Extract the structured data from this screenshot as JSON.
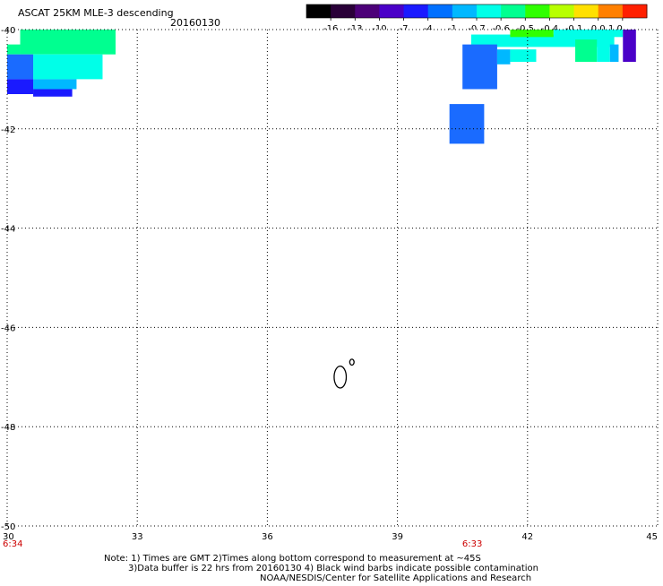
{
  "title": "ASCAT 25KM MLE-3 descending",
  "date": "20160130",
  "colorbar": {
    "labels": [
      "-16",
      "-13",
      "-10",
      "-7",
      "-4",
      "-1",
      "-0.7",
      "-0.6",
      "-0.5",
      "-0.4",
      "-0.1",
      "0.0",
      "1.0"
    ],
    "colors": [
      "#000000",
      "#2a0038",
      "#4c0078",
      "#4a00c8",
      "#1a1aff",
      "#0070ff",
      "#00b8ff",
      "#00ffe8",
      "#00ff90",
      "#30ff00",
      "#b8ff00",
      "#ffe000",
      "#ff8000",
      "#ff2000"
    ]
  },
  "map": {
    "lon_range": [
      30,
      45
    ],
    "lat_range": [
      -50,
      -40
    ],
    "lon_ticks": [
      "30",
      "33",
      "36",
      "39",
      "42",
      "45"
    ],
    "lat_ticks": [
      "-40",
      "-42",
      "-44",
      "-46",
      "-48",
      "-50"
    ],
    "grid": "dotted",
    "times": [
      {
        "lon": 30,
        "label": "6:34"
      },
      {
        "lon": 40.7,
        "label": "6:33"
      }
    ],
    "cells": [
      {
        "lon": 30.3,
        "lat": -40.0,
        "dlon": 2.2,
        "dlat": 0.5,
        "color": "#00ff90"
      },
      {
        "lon": 30.0,
        "lat": -40.3,
        "dlon": 0.3,
        "dlat": 0.2,
        "color": "#00ff90"
      },
      {
        "lon": 30.6,
        "lat": -40.5,
        "dlon": 1.6,
        "dlat": 0.5,
        "color": "#00ffe8"
      },
      {
        "lon": 30.0,
        "lat": -40.5,
        "dlon": 0.6,
        "dlat": 0.5,
        "color": "#1a6bff"
      },
      {
        "lon": 30.6,
        "lat": -41.0,
        "dlon": 1.0,
        "dlat": 0.2,
        "color": "#00b8ff"
      },
      {
        "lon": 30.0,
        "lat": -41.0,
        "dlon": 0.6,
        "dlat": 0.3,
        "color": "#1a1aff"
      },
      {
        "lon": 30.6,
        "lat": -41.2,
        "dlon": 0.9,
        "dlat": 0.15,
        "color": "#1a1aff"
      },
      {
        "lon": 40.7,
        "lat": -40.1,
        "dlon": 3.3,
        "dlat": 0.25,
        "color": "#00ffe8"
      },
      {
        "lon": 41.6,
        "lat": -40.0,
        "dlon": 1.0,
        "dlat": 0.15,
        "color": "#30ff00"
      },
      {
        "lon": 42.6,
        "lat": -40.0,
        "dlon": 1.6,
        "dlat": 0.15,
        "color": "#00ffe8"
      },
      {
        "lon": 44.2,
        "lat": -40.0,
        "dlon": 0.3,
        "dlat": 0.65,
        "color": "#4a00c8"
      },
      {
        "lon": 40.5,
        "lat": -40.3,
        "dlon": 0.8,
        "dlat": 0.9,
        "color": "#1a6bff"
      },
      {
        "lon": 41.3,
        "lat": -40.4,
        "dlon": 0.3,
        "dlat": 0.3,
        "color": "#00b8ff"
      },
      {
        "lon": 41.6,
        "lat": -40.4,
        "dlon": 0.6,
        "dlat": 0.25,
        "color": "#00ffe8"
      },
      {
        "lon": 43.1,
        "lat": -40.2,
        "dlon": 0.5,
        "dlat": 0.45,
        "color": "#00ff90"
      },
      {
        "lon": 43.6,
        "lat": -40.3,
        "dlon": 0.3,
        "dlat": 0.35,
        "color": "#00ffe8"
      },
      {
        "lon": 43.9,
        "lat": -40.3,
        "dlon": 0.2,
        "dlat": 0.35,
        "color": "#00b8ff"
      },
      {
        "lon": 40.2,
        "lat": -41.5,
        "dlon": 0.8,
        "dlat": 0.8,
        "color": "#1a6bff"
      }
    ],
    "contours": [
      {
        "lon": 37.68,
        "lat": -47.0,
        "rx": 0.14,
        "ry": 0.22
      },
      {
        "lon": 37.95,
        "lat": -46.7,
        "rx": 0.05,
        "ry": 0.06
      }
    ]
  },
  "notes": [
    "Note: 1) Times are GMT 2)Times along bottom correspond to measurement at ~45S",
    "3)Data buffer is 22 hrs from 20160130 4) Black wind barbs indicate possible contamination",
    "NOAA/NESDIS/Center for Satellite Applications and Research"
  ]
}
